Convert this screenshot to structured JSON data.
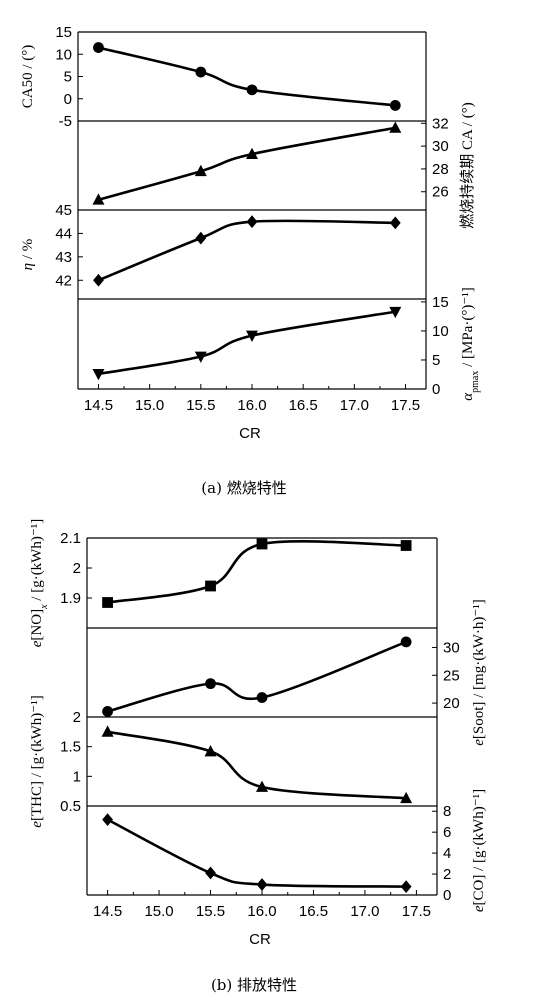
{
  "figure": {
    "chart_data": [
      {
        "type": "line",
        "caption": "(a) 燃烧特性",
        "xlabel": "CR",
        "xlim": [
          14.3,
          17.7
        ],
        "xticks": [
          "14.5",
          "15.0",
          "15.5",
          "16.0",
          "16.5",
          "17.0",
          "17.5"
        ],
        "x": [
          14.5,
          15.5,
          16.0,
          17.4
        ],
        "panels": [
          {
            "ylabel": "CA50 / (°)",
            "side": "left",
            "ylim": [
              -5,
              15
            ],
            "yticks": [
              -5,
              0,
              5,
              10,
              15
            ],
            "marker": "circle",
            "values": [
              11.5,
              6,
              2,
              -1.5
            ]
          },
          {
            "ylabel": "燃烧持续期 CA / (°)",
            "side": "right",
            "ylim": [
              24.4,
              32.2
            ],
            "yticks": [
              26,
              28,
              30,
              32
            ],
            "marker": "triangle-up",
            "values": [
              25.3,
              27.8,
              29.3,
              31.6
            ]
          },
          {
            "ylabel": "η / %",
            "side": "left",
            "ylim": [
              41.2,
              45
            ],
            "yticks": [
              42,
              43,
              44,
              45
            ],
            "marker": "diamond",
            "values": [
              42.0,
              43.8,
              44.5,
              44.45
            ]
          },
          {
            "ylabel": "α_pmax / [MPa·(°)⁻¹]",
            "side": "right",
            "ylim": [
              0,
              15.5
            ],
            "yticks": [
              0,
              5,
              10,
              15
            ],
            "marker": "triangle-down",
            "values": [
              2.6,
              5.6,
              9.2,
              13.3
            ]
          }
        ]
      },
      {
        "type": "line",
        "caption": "(b) 排放特性",
        "xlabel": "CR",
        "xlim": [
          14.3,
          17.7
        ],
        "xticks": [
          "14.5",
          "15.0",
          "15.5",
          "16.0",
          "16.5",
          "17.0",
          "17.5"
        ],
        "x": [
          14.5,
          15.5,
          16.0,
          17.4
        ],
        "panels": [
          {
            "ylabel": "e[NO]ₓ / [g·(kWh)⁻¹]",
            "side": "left",
            "ylim": [
              1.8,
              2.1
            ],
            "yticks": [
              1.9,
              2.0,
              2.1
            ],
            "marker": "square",
            "values": [
              1.885,
              1.94,
              2.08,
              2.075
            ]
          },
          {
            "ylabel": "e[Soot] / [mg·(kW·h)⁻¹]",
            "side": "right",
            "ylim": [
              17.5,
              33.5
            ],
            "yticks": [
              20,
              25,
              30
            ],
            "marker": "circle",
            "values": [
              18.5,
              23.5,
              21,
              31
            ]
          },
          {
            "ylabel": "e[THC] / [g·(kWh)⁻¹]",
            "side": "left",
            "ylim": [
              0.5,
              2.0
            ],
            "yticks": [
              0.5,
              1.0,
              1.5,
              2.0
            ],
            "marker": "triangle-up",
            "values": [
              1.75,
              1.42,
              0.82,
              0.63
            ]
          },
          {
            "ylabel": "e[CO] / [g·(kWh)⁻¹]",
            "side": "right",
            "ylim": [
              0,
              8.5
            ],
            "yticks": [
              0,
              2,
              4,
              6,
              8
            ],
            "marker": "diamond",
            "values": [
              7.2,
              2.1,
              1.0,
              0.8
            ]
          }
        ]
      }
    ]
  }
}
